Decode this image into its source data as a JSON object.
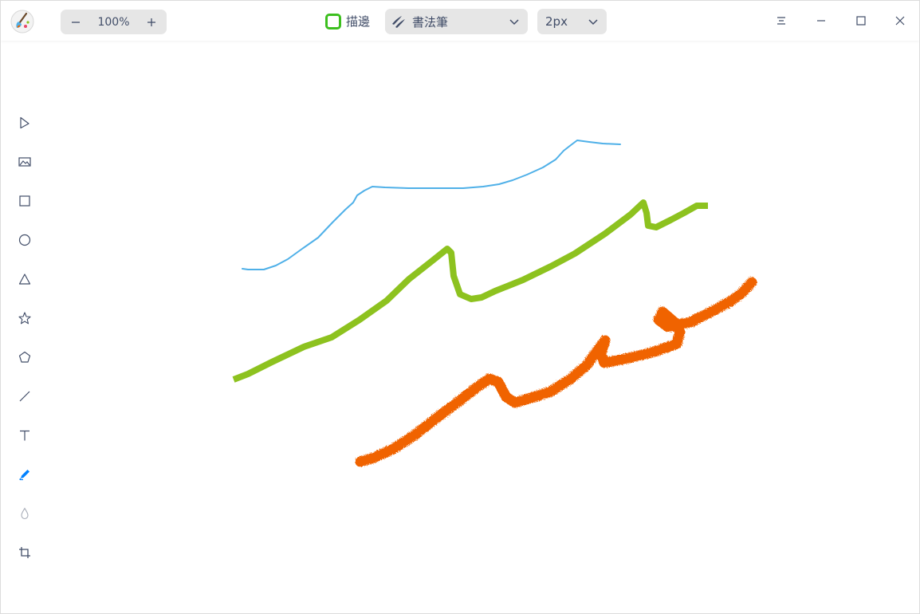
{
  "zoom": {
    "value": "100%",
    "decrease_icon": "minus-icon",
    "increase_icon": "plus-icon"
  },
  "stroke": {
    "label": "描邊",
    "enabled": true,
    "color": "#3cbf1e"
  },
  "brush_type": {
    "selected": "書法筆",
    "icon": "calligraphy-brush-icon"
  },
  "line_width": {
    "selected": "2px"
  },
  "window_controls": [
    "menu-icon",
    "minimize-icon",
    "maximize-icon",
    "close-icon"
  ],
  "tools": [
    {
      "name": "select-tool",
      "icon": "cursor-arrow-icon",
      "active": false
    },
    {
      "name": "image-tool",
      "icon": "image-icon",
      "active": false
    },
    {
      "name": "rectangle-tool",
      "icon": "rectangle-icon",
      "active": false
    },
    {
      "name": "ellipse-tool",
      "icon": "ellipse-icon",
      "active": false
    },
    {
      "name": "triangle-tool",
      "icon": "triangle-icon",
      "active": false
    },
    {
      "name": "star-tool",
      "icon": "star-icon",
      "active": false
    },
    {
      "name": "polygon-tool",
      "icon": "pentagon-icon",
      "active": false
    },
    {
      "name": "line-tool",
      "icon": "line-icon",
      "active": false
    },
    {
      "name": "text-tool",
      "icon": "text-icon",
      "active": false
    },
    {
      "name": "pen-tool",
      "icon": "pencil-icon",
      "active": true
    },
    {
      "name": "blur-tool",
      "icon": "droplet-icon",
      "active": false
    },
    {
      "name": "crop-tool",
      "icon": "crop-icon",
      "active": false
    }
  ],
  "colors": {
    "accent": "#0081ff",
    "stroke_blue": "#4fb0e8",
    "stroke_green": "#8dc21f",
    "stroke_orange": "#f06400"
  }
}
